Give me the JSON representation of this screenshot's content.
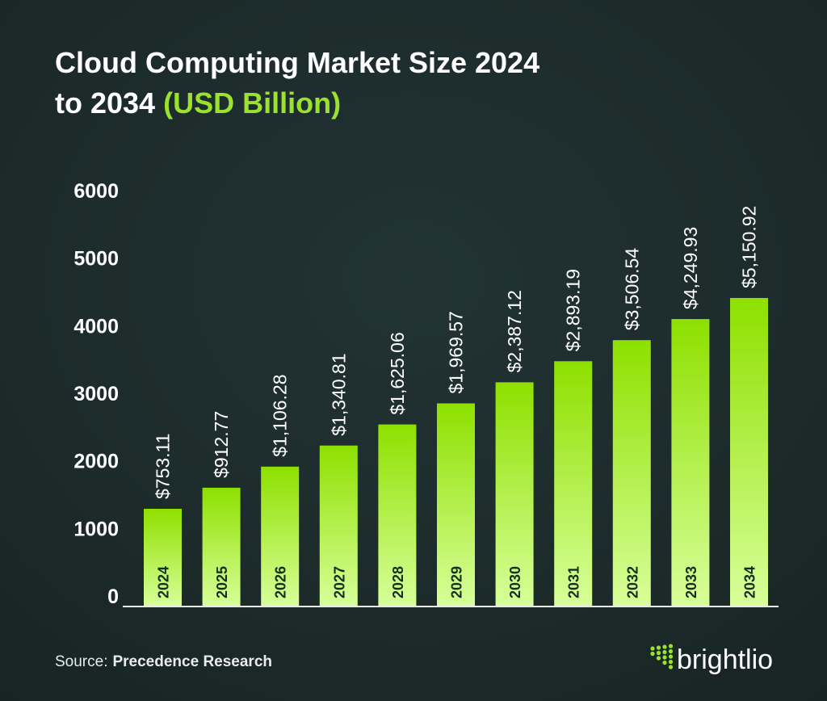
{
  "chart_data": {
    "type": "bar",
    "title_line1": "Cloud Computing Market Size 2024",
    "title_line2": "to 2034",
    "title_highlight": "(USD Billion)",
    "categories": [
      "2024",
      "2025",
      "2026",
      "2027",
      "2028",
      "2029",
      "2030",
      "2031",
      "2032",
      "2033",
      "2034"
    ],
    "values": [
      753.11,
      912.77,
      1106.28,
      1340.81,
      1625.06,
      1969.57,
      2387.12,
      2893.19,
      3506.54,
      4249.93,
      5150.92
    ],
    "value_labels": [
      "$753.11",
      "$912.77",
      "$1,106.28",
      "$1,340.81",
      "$1,625.06",
      "$1,969.57",
      "$2,387.12",
      "$2,893.19",
      "$3,506.54",
      "$4,249.93",
      "$5,150.92"
    ],
    "yticks": [
      "0",
      "1000",
      "2000",
      "3000",
      "4000",
      "5000",
      "6000"
    ],
    "ylim": [
      0,
      6000
    ],
    "xlabel": "",
    "ylabel": "",
    "grid": false,
    "colors": {
      "bar_top": "#8ee000",
      "bar_bottom": "#d8ff9a",
      "accent": "#9be22d",
      "background": "#1c2a2a"
    }
  },
  "footer": {
    "source_label": "Source:",
    "source_name": "Precedence Research",
    "brand": "brightlio"
  }
}
